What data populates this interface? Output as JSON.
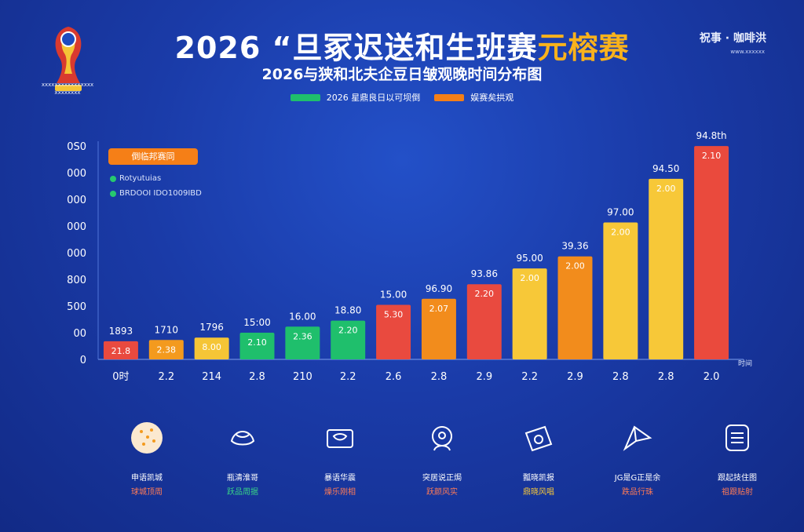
{
  "header": {
    "title_main": "2026 “旦冢迟送和生班赛",
    "title_accent": "元榕赛",
    "subtitle": "2026与狭和北夫企豆日皱观晚时间分布图",
    "brand": "祝事 · 咖啡洪",
    "brand_sub": "www.xxxxxx",
    "logo_text": "xxxxxxxxxxxxxxxx xxxxxxxx"
  },
  "legend": [
    {
      "label": "2026 星鼎良日以可坝倒",
      "color": "#1fbf6c"
    },
    {
      "label": "娱赛矣拱观",
      "color": "#f57f17"
    }
  ],
  "callout": {
    "label": "倒临邦赛同",
    "items": [
      "Rotyutuias",
      "BRDOOI IDO1009IBD"
    ]
  },
  "chart_data": {
    "type": "bar",
    "y_tick_labels": [
      "0",
      "00",
      "500",
      "800",
      "000",
      "000",
      "000",
      "000",
      "0S0"
    ],
    "x_axis_end_label": "时间",
    "categories": [
      "0时",
      "2.2",
      "214",
      "2.8",
      "210",
      "2.2",
      "2.6",
      "2.8",
      "2.9",
      "2.2",
      "2.9",
      "2.8",
      "2.8",
      "2.0"
    ],
    "values": [
      1.5,
      1.6,
      1.8,
      2.2,
      2.7,
      3.2,
      4.5,
      5.0,
      6.2,
      7.5,
      8.5,
      11.3,
      14.9,
      17.6
    ],
    "ylim": [
      0,
      18
    ],
    "value_labels": [
      "1893",
      "1710",
      "1796",
      "15:00",
      "16.00",
      "18.80",
      "15.00",
      "96.90",
      "93.86",
      "95.00",
      "39.36",
      "97.00",
      "94.50",
      "94.8th"
    ],
    "inner_labels": [
      "21.8",
      "2.38",
      "8.00",
      "2.10",
      "2.36",
      "2.20",
      "5.30",
      "2.07",
      "2.20",
      "2.00",
      "2.00",
      "2.00",
      "2.00",
      "2.10"
    ],
    "colors": [
      "#e94a3f",
      "#f39a1e",
      "#f5c536",
      "#1fbf6c",
      "#1fbf6c",
      "#1fbf6c",
      "#e94a3f",
      "#f28c1c",
      "#e94a3f",
      "#f7c838",
      "#f28c1c",
      "#f7c838",
      "#f7c838",
      "#ea4a3d"
    ],
    "grid": false
  },
  "icons": [
    {
      "name": "ball-icon",
      "line1": "申语凯城",
      "line2": "球城顶周",
      "accent": "#ff7b56"
    },
    {
      "name": "hat-icon",
      "line1": "瓶清淮哥",
      "line2": "跃品周据",
      "accent": "#38d387"
    },
    {
      "name": "ticket-icon",
      "line1": "暴语华震",
      "line2": "燥乐刚相",
      "accent": "#ff7b56"
    },
    {
      "name": "head-icon",
      "line1": "突居说正焗",
      "line2": "跃颜风实",
      "accent": "#ff7b56"
    },
    {
      "name": "camera-icon",
      "line1": "瓢晓凯报",
      "line2": "鼎晓风唱",
      "accent": "#f7c838"
    },
    {
      "name": "drone-icon",
      "line1": "JG是G正是余",
      "line2": "跌品行珠",
      "accent": "#ff7b56"
    },
    {
      "name": "document-icon",
      "line1": "跟起技住图",
      "line2": "祖跟贴射",
      "accent": "#ff7b56"
    }
  ]
}
